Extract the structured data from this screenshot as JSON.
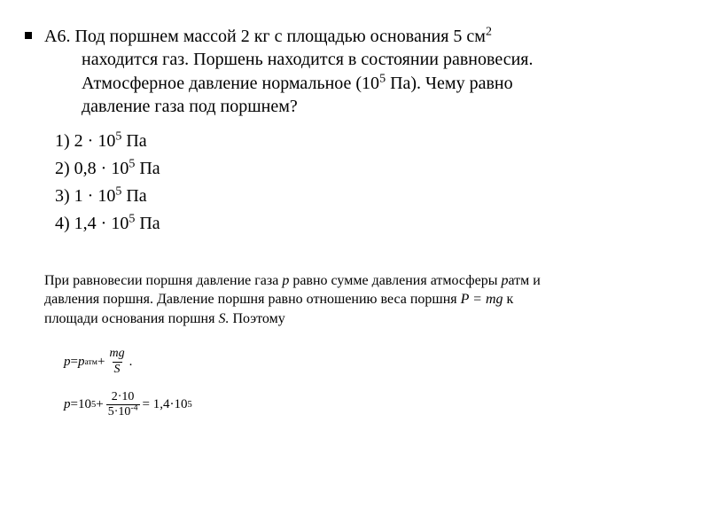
{
  "problem": {
    "id_label": "А6.",
    "line1": "Под поршнем массой 2 кг с площадью основания 5 см",
    "line1_sup": "2",
    "line2": "находится газ. Поршень находится в состоянии равновесия.",
    "line3_a": "Атмосферное давление нормальное (10",
    "line3_sup": "5",
    "line3_b": " Па). Чему равно",
    "line4": "давление газа под поршнем?"
  },
  "choices": {
    "c1_a": "1) 2 ",
    "c1_dot": "·",
    "c1_b": " 10",
    "c1_sup": "5",
    "c1_c": " Па",
    "c2_a": "2) 0,8 ",
    "c2_dot": "·",
    "c2_b": " 10",
    "c2_sup": "5",
    "c2_c": " Па",
    "c3_a": "3) 1 ",
    "c3_dot": "·",
    "c3_b": " 10",
    "c3_sup": "5",
    "c3_c": " Па",
    "c4_a": "4) 1,4 ",
    "c4_dot": "·",
    "c4_b": " 10",
    "c4_sup": "5",
    "c4_c": " Па"
  },
  "explain": {
    "l1_a": "При равновесии поршня давление газа ",
    "l1_p": "p",
    "l1_b": " равно сумме давления атмосферы ",
    "l1_patm": "p",
    "l1_c": "атм и",
    "l2_a": "давления поршня. Давление поршня равно отношению веса поршня ",
    "l2_P": "P = mg",
    "l2_b": " к",
    "l3_a": "площади основания поршня ",
    "l3_S": "S.",
    "l3_b": " Поэтому"
  },
  "eq1": {
    "lhs_p": "p",
    "eq": " = ",
    "patm_p": "p",
    "patm_sub": "атм",
    "plus": " + ",
    "frac_num": "mg",
    "frac_den": "S",
    "end": "."
  },
  "eq2": {
    "lhs_p": "p",
    "eq1": " = ",
    "t1": "10",
    "t1_sup": "5",
    "plus": " + ",
    "num_a": "2·10",
    "den_a": "5·10",
    "den_sup": "-4",
    "eq2": " = 1,4·10",
    "res_sup": "5"
  },
  "colors": {
    "text": "#000000",
    "background": "#ffffff"
  }
}
